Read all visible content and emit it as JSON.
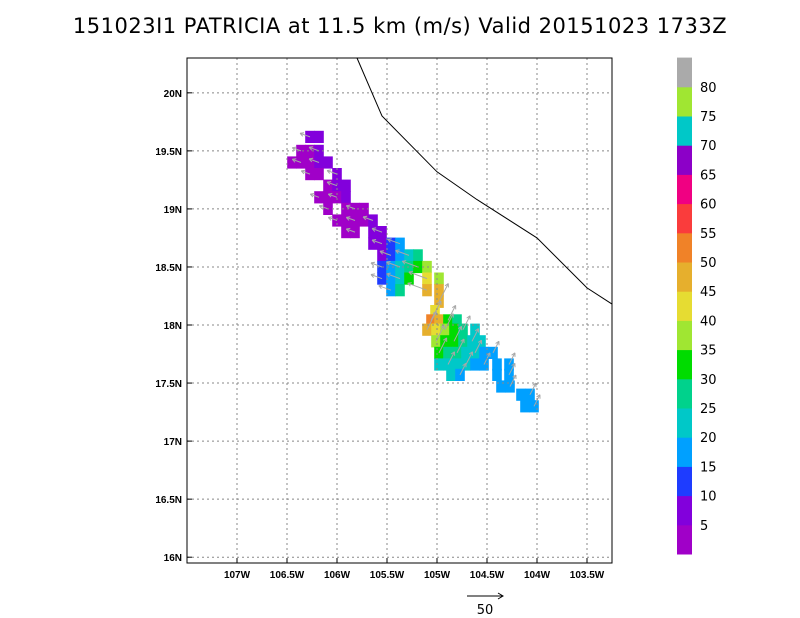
{
  "title": "151023I1 PATRICIA at 11.5 km (m/s) Valid 20151023 1733Z",
  "chart_data": {
    "type": "heatmap",
    "title": "151023I1 PATRICIA at 11.5 km (m/s) Valid 20151023 1733Z",
    "x_range_deg": [
      -107.5,
      -103.25
    ],
    "y_range_deg": [
      15.95,
      20.3
    ],
    "x_tick_labels": [
      "107W",
      "106.5W",
      "106W",
      "105.5W",
      "105W",
      "104.5W",
      "104W",
      "103.5W"
    ],
    "x_tick_values": [
      -107,
      -106.5,
      -106,
      -105.5,
      -105,
      -104.5,
      -104,
      -103.5
    ],
    "y_tick_labels": [
      "16N",
      "16.5N",
      "17N",
      "17.5N",
      "18N",
      "18.5N",
      "19N",
      "19.5N",
      "20N"
    ],
    "y_tick_values": [
      16,
      16.5,
      17,
      17.5,
      18,
      18.5,
      19,
      19.5,
      20
    ],
    "grid": true,
    "coastline": [
      [
        -105.8,
        20.3
      ],
      [
        -105.55,
        19.8
      ],
      [
        -105.0,
        19.32
      ],
      [
        -104.6,
        19.08
      ],
      [
        -104.0,
        18.75
      ],
      [
        -103.5,
        18.32
      ],
      [
        -103.25,
        18.18
      ]
    ],
    "colorbar": {
      "labels": [
        "5",
        "10",
        "15",
        "20",
        "25",
        "30",
        "35",
        "40",
        "45",
        "50",
        "55",
        "60",
        "65",
        "70",
        "75",
        "80"
      ],
      "colors": [
        "#a000c8",
        "#8200dc",
        "#1e3cff",
        "#00a0ff",
        "#00c8c8",
        "#00d28c",
        "#00dc00",
        "#a0e632",
        "#e6dc32",
        "#e6af2d",
        "#f08228",
        "#fa3c3c",
        "#f00082",
        "#8c00c8",
        "#00c8c8",
        "#a0e632",
        "#aaaaaa"
      ]
    },
    "swath_cells": [
      {
        "lon": -106.27,
        "lat": 19.62,
        "v": 10
      },
      {
        "lon": -106.18,
        "lat": 19.62,
        "v": 10
      },
      {
        "lon": -106.36,
        "lat": 19.5,
        "v": 5
      },
      {
        "lon": -106.27,
        "lat": 19.5,
        "v": 5
      },
      {
        "lon": -106.18,
        "lat": 19.5,
        "v": 10
      },
      {
        "lon": -106.45,
        "lat": 19.4,
        "v": 5
      },
      {
        "lon": -106.36,
        "lat": 19.4,
        "v": 5
      },
      {
        "lon": -106.27,
        "lat": 19.4,
        "v": 5
      },
      {
        "lon": -106.18,
        "lat": 19.4,
        "v": 10
      },
      {
        "lon": -106.09,
        "lat": 19.4,
        "v": 10
      },
      {
        "lon": -106.27,
        "lat": 19.3,
        "v": 5
      },
      {
        "lon": -106.18,
        "lat": 19.3,
        "v": 5
      },
      {
        "lon": -106.0,
        "lat": 19.3,
        "v": 10
      },
      {
        "lon": -106.09,
        "lat": 19.2,
        "v": 5
      },
      {
        "lon": -106.0,
        "lat": 19.2,
        "v": 10
      },
      {
        "lon": -105.91,
        "lat": 19.2,
        "v": 10
      },
      {
        "lon": -106.18,
        "lat": 19.1,
        "v": 5
      },
      {
        "lon": -106.09,
        "lat": 19.1,
        "v": 5
      },
      {
        "lon": -106.0,
        "lat": 19.1,
        "v": 5
      },
      {
        "lon": -105.91,
        "lat": 19.1,
        "v": 10
      },
      {
        "lon": -106.09,
        "lat": 19.0,
        "v": 5
      },
      {
        "lon": -105.91,
        "lat": 19.0,
        "v": 5
      },
      {
        "lon": -105.82,
        "lat": 19.0,
        "v": 5
      },
      {
        "lon": -105.73,
        "lat": 19.0,
        "v": 5
      },
      {
        "lon": -106.0,
        "lat": 18.9,
        "v": 5
      },
      {
        "lon": -105.91,
        "lat": 18.9,
        "v": 5
      },
      {
        "lon": -105.82,
        "lat": 18.9,
        "v": 5
      },
      {
        "lon": -105.73,
        "lat": 18.9,
        "v": 5
      },
      {
        "lon": -105.64,
        "lat": 18.9,
        "v": 10
      },
      {
        "lon": -105.91,
        "lat": 18.8,
        "v": 5
      },
      {
        "lon": -105.82,
        "lat": 18.8,
        "v": 5
      },
      {
        "lon": -105.64,
        "lat": 18.8,
        "v": 10
      },
      {
        "lon": -105.55,
        "lat": 18.8,
        "v": 10
      },
      {
        "lon": -105.64,
        "lat": 18.7,
        "v": 10
      },
      {
        "lon": -105.55,
        "lat": 18.7,
        "v": 10
      },
      {
        "lon": -105.46,
        "lat": 18.7,
        "v": 15
      },
      {
        "lon": -105.37,
        "lat": 18.7,
        "v": 20
      },
      {
        "lon": -105.55,
        "lat": 18.6,
        "v": 10
      },
      {
        "lon": -105.46,
        "lat": 18.6,
        "v": 15
      },
      {
        "lon": -105.37,
        "lat": 18.6,
        "v": 20
      },
      {
        "lon": -105.28,
        "lat": 18.6,
        "v": 25
      },
      {
        "lon": -105.19,
        "lat": 18.6,
        "v": 30
      },
      {
        "lon": -105.55,
        "lat": 18.5,
        "v": 15
      },
      {
        "lon": -105.46,
        "lat": 18.5,
        "v": 20
      },
      {
        "lon": -105.37,
        "lat": 18.5,
        "v": 25
      },
      {
        "lon": -105.28,
        "lat": 18.5,
        "v": 30
      },
      {
        "lon": -105.19,
        "lat": 18.5,
        "v": 35
      },
      {
        "lon": -105.1,
        "lat": 18.5,
        "v": 40
      },
      {
        "lon": -105.55,
        "lat": 18.4,
        "v": 15
      },
      {
        "lon": -105.46,
        "lat": 18.4,
        "v": 20
      },
      {
        "lon": -105.37,
        "lat": 18.4,
        "v": 25
      },
      {
        "lon": -105.28,
        "lat": 18.4,
        "v": 35
      },
      {
        "lon": -105.1,
        "lat": 18.4,
        "v": 45
      },
      {
        "lon": -104.98,
        "lat": 18.4,
        "v": 40
      },
      {
        "lon": -105.46,
        "lat": 18.3,
        "v": 20
      },
      {
        "lon": -105.37,
        "lat": 18.3,
        "v": 30
      },
      {
        "lon": -105.1,
        "lat": 18.3,
        "v": 50
      },
      {
        "lon": -104.98,
        "lat": 18.3,
        "v": 50
      },
      {
        "lon": -104.98,
        "lat": 18.2,
        "v": 50
      },
      {
        "lon": -105.02,
        "lat": 18.12,
        "v": 45
      },
      {
        "lon": -105.06,
        "lat": 18.04,
        "v": 55
      },
      {
        "lon": -104.98,
        "lat": 18.04,
        "v": 50
      },
      {
        "lon": -104.89,
        "lat": 18.04,
        "v": 35
      },
      {
        "lon": -104.8,
        "lat": 18.04,
        "v": 30
      },
      {
        "lon": -105.1,
        "lat": 17.96,
        "v": 50
      },
      {
        "lon": -105.01,
        "lat": 17.96,
        "v": 45
      },
      {
        "lon": -104.92,
        "lat": 17.96,
        "v": 40
      },
      {
        "lon": -104.83,
        "lat": 17.96,
        "v": 35
      },
      {
        "lon": -104.74,
        "lat": 17.96,
        "v": 30
      },
      {
        "lon": -104.62,
        "lat": 17.96,
        "v": 25
      },
      {
        "lon": -105.01,
        "lat": 17.86,
        "v": 40
      },
      {
        "lon": -104.92,
        "lat": 17.86,
        "v": 35
      },
      {
        "lon": -104.83,
        "lat": 17.86,
        "v": 35
      },
      {
        "lon": -104.74,
        "lat": 17.86,
        "v": 30
      },
      {
        "lon": -104.65,
        "lat": 17.86,
        "v": 25
      },
      {
        "lon": -104.56,
        "lat": 17.86,
        "v": 25
      },
      {
        "lon": -104.98,
        "lat": 17.76,
        "v": 35
      },
      {
        "lon": -104.89,
        "lat": 17.76,
        "v": 30
      },
      {
        "lon": -104.8,
        "lat": 17.76,
        "v": 30
      },
      {
        "lon": -104.71,
        "lat": 17.76,
        "v": 25
      },
      {
        "lon": -104.62,
        "lat": 17.76,
        "v": 25
      },
      {
        "lon": -104.53,
        "lat": 17.76,
        "v": 20
      },
      {
        "lon": -104.44,
        "lat": 17.76,
        "v": 20
      },
      {
        "lon": -104.98,
        "lat": 17.66,
        "v": 25
      },
      {
        "lon": -104.89,
        "lat": 17.66,
        "v": 25
      },
      {
        "lon": -104.8,
        "lat": 17.66,
        "v": 25
      },
      {
        "lon": -104.71,
        "lat": 17.66,
        "v": 25
      },
      {
        "lon": -104.62,
        "lat": 17.66,
        "v": 20
      },
      {
        "lon": -104.53,
        "lat": 17.66,
        "v": 20
      },
      {
        "lon": -104.4,
        "lat": 17.66,
        "v": 20
      },
      {
        "lon": -104.28,
        "lat": 17.66,
        "v": 20
      },
      {
        "lon": -104.86,
        "lat": 17.57,
        "v": 25
      },
      {
        "lon": -104.77,
        "lat": 17.57,
        "v": 20
      },
      {
        "lon": -104.4,
        "lat": 17.57,
        "v": 20
      },
      {
        "lon": -104.28,
        "lat": 17.57,
        "v": 20
      },
      {
        "lon": -104.36,
        "lat": 17.47,
        "v": 20
      },
      {
        "lon": -104.27,
        "lat": 17.47,
        "v": 20
      },
      {
        "lon": -104.16,
        "lat": 17.4,
        "v": 20
      },
      {
        "lon": -104.07,
        "lat": 17.4,
        "v": 20
      },
      {
        "lon": -104.12,
        "lat": 17.3,
        "v": 20
      },
      {
        "lon": -104.03,
        "lat": 17.3,
        "v": 20
      }
    ],
    "reference_vector": {
      "magnitude": 50,
      "label": "50"
    }
  }
}
